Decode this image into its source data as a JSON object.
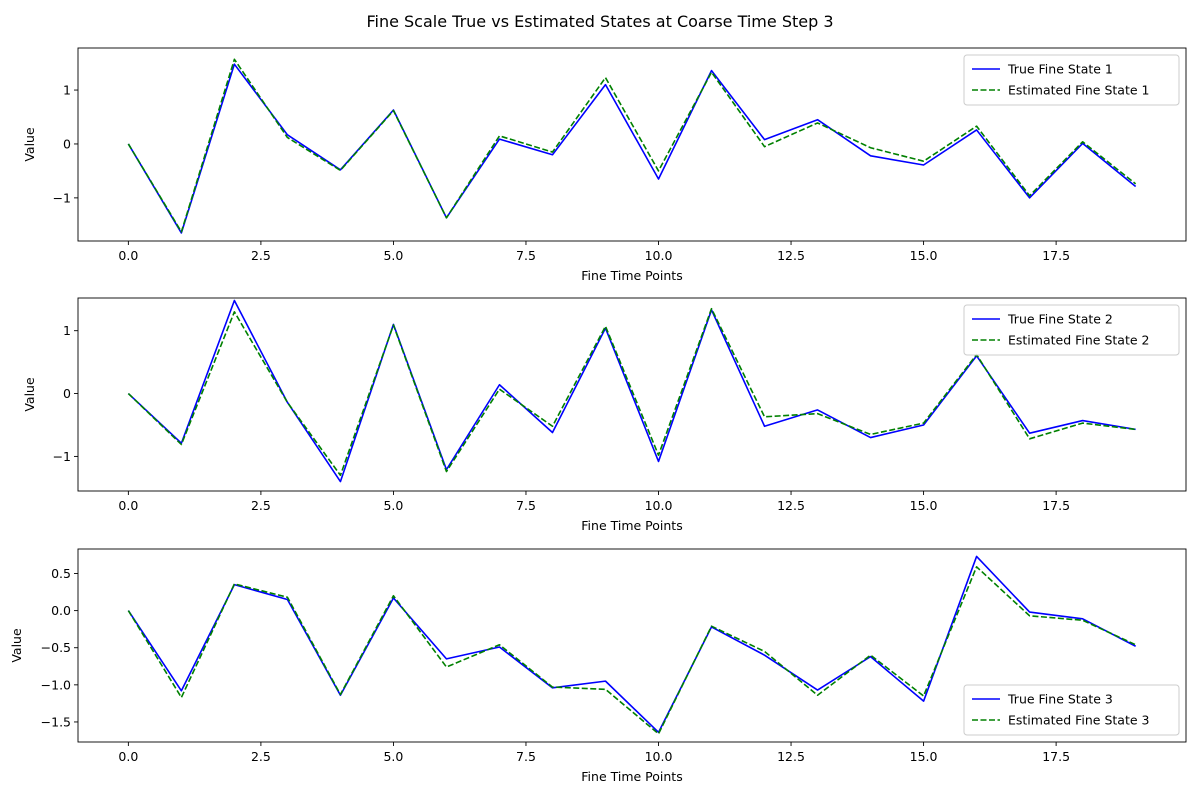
{
  "figure": {
    "title": "Fine Scale True vs Estimated States at Coarse Time Step 3"
  },
  "chart_data": [
    {
      "type": "line",
      "title": "",
      "xlabel": "Fine Time Points",
      "ylabel": "Value",
      "xlim": [
        -0.95,
        19.95
      ],
      "ylim": [
        -1.8,
        1.78
      ],
      "xticks": [
        0.0,
        2.5,
        5.0,
        7.5,
        10.0,
        12.5,
        15.0,
        17.5
      ],
      "xtick_labels": [
        "0.0",
        "2.5",
        "5.0",
        "7.5",
        "10.0",
        "12.5",
        "15.0",
        "17.5"
      ],
      "yticks": [
        -1,
        0,
        1
      ],
      "ytick_labels": [
        "−1",
        "0",
        "1"
      ],
      "grid": false,
      "legend_position": "upper right",
      "x": [
        0,
        1,
        2,
        3,
        4,
        5,
        6,
        7,
        8,
        9,
        10,
        11,
        12,
        13,
        14,
        15,
        16,
        17,
        18,
        19
      ],
      "series": [
        {
          "name": "True Fine State 1",
          "color": "#0000ff",
          "style": "solid",
          "values": [
            0.0,
            -1.65,
            1.48,
            0.17,
            -0.48,
            0.63,
            -1.37,
            0.09,
            -0.2,
            1.1,
            -0.65,
            1.36,
            0.08,
            0.45,
            -0.22,
            -0.39,
            0.26,
            -1.0,
            0.01,
            -0.79
          ]
        },
        {
          "name": "Estimated Fine State 1",
          "color": "#008000",
          "style": "dashed",
          "values": [
            0.0,
            -1.63,
            1.57,
            0.12,
            -0.49,
            0.62,
            -1.37,
            0.15,
            -0.15,
            1.23,
            -0.5,
            1.33,
            -0.05,
            0.39,
            -0.07,
            -0.32,
            0.33,
            -0.96,
            0.04,
            -0.74
          ]
        }
      ]
    },
    {
      "type": "line",
      "title": "",
      "xlabel": "Fine Time Points",
      "ylabel": "Value",
      "xlim": [
        -0.95,
        19.95
      ],
      "ylim": [
        -1.55,
        1.52
      ],
      "xticks": [
        0.0,
        2.5,
        5.0,
        7.5,
        10.0,
        12.5,
        15.0,
        17.5
      ],
      "xtick_labels": [
        "0.0",
        "2.5",
        "5.0",
        "7.5",
        "10.0",
        "12.5",
        "15.0",
        "17.5"
      ],
      "yticks": [
        -1,
        0,
        1
      ],
      "ytick_labels": [
        "−1",
        "0",
        "1"
      ],
      "grid": false,
      "legend_position": "upper right",
      "x": [
        0,
        1,
        2,
        3,
        4,
        5,
        6,
        7,
        8,
        9,
        10,
        11,
        12,
        13,
        14,
        15,
        16,
        17,
        18,
        19
      ],
      "series": [
        {
          "name": "True Fine State 2",
          "color": "#0000ff",
          "style": "solid",
          "values": [
            0.0,
            -0.79,
            1.48,
            -0.14,
            -1.4,
            1.1,
            -1.21,
            0.14,
            -0.62,
            1.04,
            -1.08,
            1.33,
            -0.52,
            -0.26,
            -0.7,
            -0.5,
            0.6,
            -0.63,
            -0.43,
            -0.57
          ]
        },
        {
          "name": "Estimated Fine State 2",
          "color": "#008000",
          "style": "dashed",
          "values": [
            0.0,
            -0.81,
            1.3,
            -0.14,
            -1.3,
            1.09,
            -1.24,
            0.07,
            -0.52,
            1.07,
            -0.98,
            1.35,
            -0.37,
            -0.32,
            -0.65,
            -0.47,
            0.62,
            -0.72,
            -0.47,
            -0.57
          ]
        }
      ]
    },
    {
      "type": "line",
      "title": "",
      "xlabel": "Fine Time Points",
      "ylabel": "Value",
      "xlim": [
        -0.95,
        19.95
      ],
      "ylim": [
        -1.77,
        0.83
      ],
      "xticks": [
        0.0,
        2.5,
        5.0,
        7.5,
        10.0,
        12.5,
        15.0,
        17.5
      ],
      "xtick_labels": [
        "0.0",
        "2.5",
        "5.0",
        "7.5",
        "10.0",
        "12.5",
        "15.0",
        "17.5"
      ],
      "yticks": [
        -1.5,
        -1.0,
        -0.5,
        0.0,
        0.5
      ],
      "ytick_labels": [
        "−1.5",
        "−1.0",
        "−0.5",
        "0.0",
        "0.5"
      ],
      "grid": false,
      "legend_position": "lower right",
      "x": [
        0,
        1,
        2,
        3,
        4,
        5,
        6,
        7,
        8,
        9,
        10,
        11,
        12,
        13,
        14,
        15,
        16,
        17,
        18,
        19
      ],
      "series": [
        {
          "name": "True Fine State 3",
          "color": "#0000ff",
          "style": "solid",
          "values": [
            0.0,
            -1.08,
            0.35,
            0.15,
            -1.14,
            0.17,
            -0.65,
            -0.49,
            -1.04,
            -0.95,
            -1.64,
            -0.22,
            -0.6,
            -1.07,
            -0.62,
            -1.22,
            0.73,
            -0.02,
            -0.11,
            -0.48
          ]
        },
        {
          "name": "Estimated Fine State 3",
          "color": "#008000",
          "style": "dashed",
          "values": [
            0.0,
            -1.17,
            0.36,
            0.18,
            -1.13,
            0.2,
            -0.76,
            -0.46,
            -1.03,
            -1.06,
            -1.66,
            -0.21,
            -0.55,
            -1.14,
            -0.6,
            -1.15,
            0.59,
            -0.07,
            -0.13,
            -0.46
          ]
        }
      ]
    }
  ]
}
